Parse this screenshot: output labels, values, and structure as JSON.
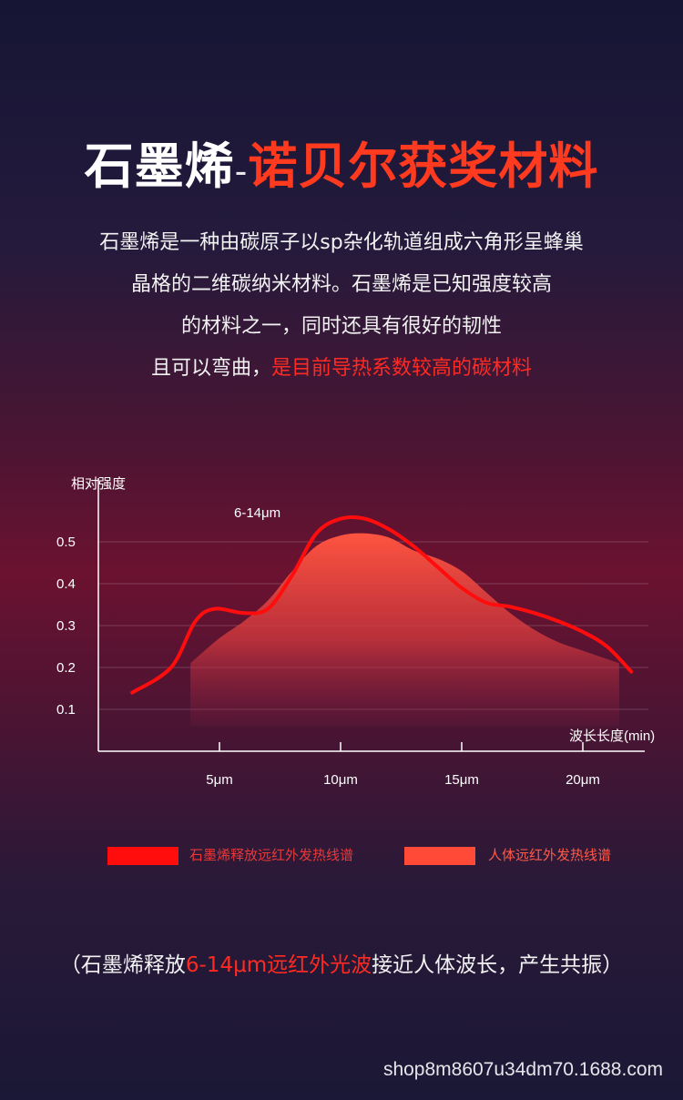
{
  "title": {
    "part1": "石墨烯",
    "separator": "-",
    "part2": "诺贝尔获奖材料"
  },
  "description": {
    "line1": "石墨烯是一种由碳原子以sp杂化轨道组成六角形呈蜂巢",
    "line2": "晶格的二维碳纳米材料。石墨烯是已知强度较高",
    "line3": "的材料之一，同时还具有很好的韧性",
    "line4_normal": "且可以弯曲，",
    "line4_highlight": "是目前导热系数较高的碳材料"
  },
  "chart_data": {
    "type": "line",
    "ylabel": "相对强度",
    "xlabel": "波长长度(min)",
    "x_ticks": [
      5,
      10,
      15,
      20
    ],
    "x_tick_labels": [
      "5μm",
      "10μm",
      "15μm",
      "20μm"
    ],
    "y_ticks": [
      0.1,
      0.2,
      0.3,
      0.4,
      0.5
    ],
    "y_tick_labels": [
      "0.1",
      "0.2",
      "0.3",
      "0.4",
      "0.5"
    ],
    "xlim": [
      0,
      23.5
    ],
    "ylim": [
      0,
      0.6
    ],
    "grid": true,
    "annotation": "6-14μm",
    "series": [
      {
        "name": "石墨烯释放远红外发热线谱",
        "style": "line",
        "color": "#ff0d0d",
        "points": [
          [
            1.4,
            0.14
          ],
          [
            3,
            0.2
          ],
          [
            4,
            0.31
          ],
          [
            4.8,
            0.34
          ],
          [
            6,
            0.33
          ],
          [
            7,
            0.34
          ],
          [
            8,
            0.42
          ],
          [
            9,
            0.52
          ],
          [
            10,
            0.555
          ],
          [
            11,
            0.555
          ],
          [
            12,
            0.53
          ],
          [
            13,
            0.49
          ],
          [
            14,
            0.44
          ],
          [
            15,
            0.39
          ],
          [
            16,
            0.355
          ],
          [
            17,
            0.345
          ],
          [
            18,
            0.33
          ],
          [
            19,
            0.31
          ],
          [
            20,
            0.285
          ],
          [
            21,
            0.25
          ],
          [
            22,
            0.19
          ]
        ]
      },
      {
        "name": "人体远红外发热线谱",
        "style": "area",
        "color": "#ff4a38",
        "points": [
          [
            3.8,
            0.21
          ],
          [
            5,
            0.27
          ],
          [
            6,
            0.31
          ],
          [
            7,
            0.36
          ],
          [
            8,
            0.43
          ],
          [
            9,
            0.49
          ],
          [
            10,
            0.515
          ],
          [
            11,
            0.52
          ],
          [
            12,
            0.51
          ],
          [
            13,
            0.48
          ],
          [
            14,
            0.46
          ],
          [
            15,
            0.43
          ],
          [
            16,
            0.38
          ],
          [
            17,
            0.33
          ],
          [
            18,
            0.29
          ],
          [
            19,
            0.26
          ],
          [
            20,
            0.24
          ],
          [
            21,
            0.22
          ],
          [
            21.5,
            0.21
          ]
        ]
      }
    ]
  },
  "note": {
    "open": "（",
    "part1": "石墨烯释放",
    "highlight": "6-14μm远红外光波",
    "part2": "接近人体波长，产生共振",
    "close": "）"
  },
  "footer": {
    "url": "shop8m8607u34dm70.1688.com"
  }
}
